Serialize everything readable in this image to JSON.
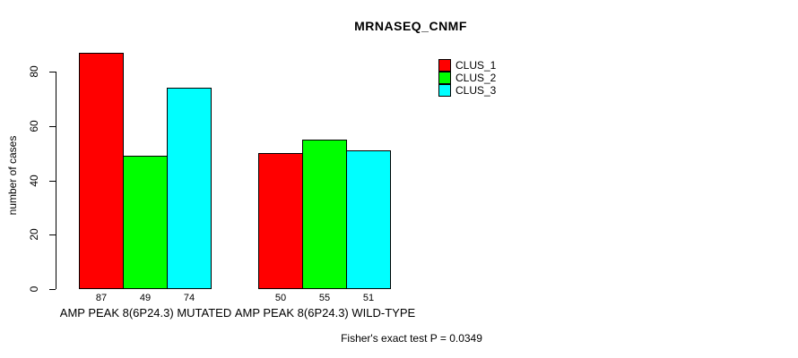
{
  "chart_data": {
    "type": "bar",
    "title": "MRNASEQ_CNMF",
    "xlabel": "",
    "ylabel": "number of cases",
    "ylim": [
      0,
      80
    ],
    "yticks": [
      0,
      20,
      40,
      60,
      80
    ],
    "grid": false,
    "legend_position": "top-right",
    "categories": [
      "AMP PEAK  8(6P24.3) MUTATED",
      "AMP PEAK  8(6P24.3) WILD-TYPE"
    ],
    "series": [
      {
        "name": "CLUS_1",
        "color": "#ff0000",
        "values": [
          87,
          50
        ]
      },
      {
        "name": "CLUS_2",
        "color": "#00ff00",
        "values": [
          49,
          55
        ]
      },
      {
        "name": "CLUS_3",
        "color": "#00ffff",
        "values": [
          74,
          51
        ]
      }
    ],
    "bar_value_labels": [
      [
        87,
        49,
        74
      ],
      [
        50,
        55,
        51
      ]
    ],
    "footnote": "Fisher's exact test P = 0.0349"
  }
}
